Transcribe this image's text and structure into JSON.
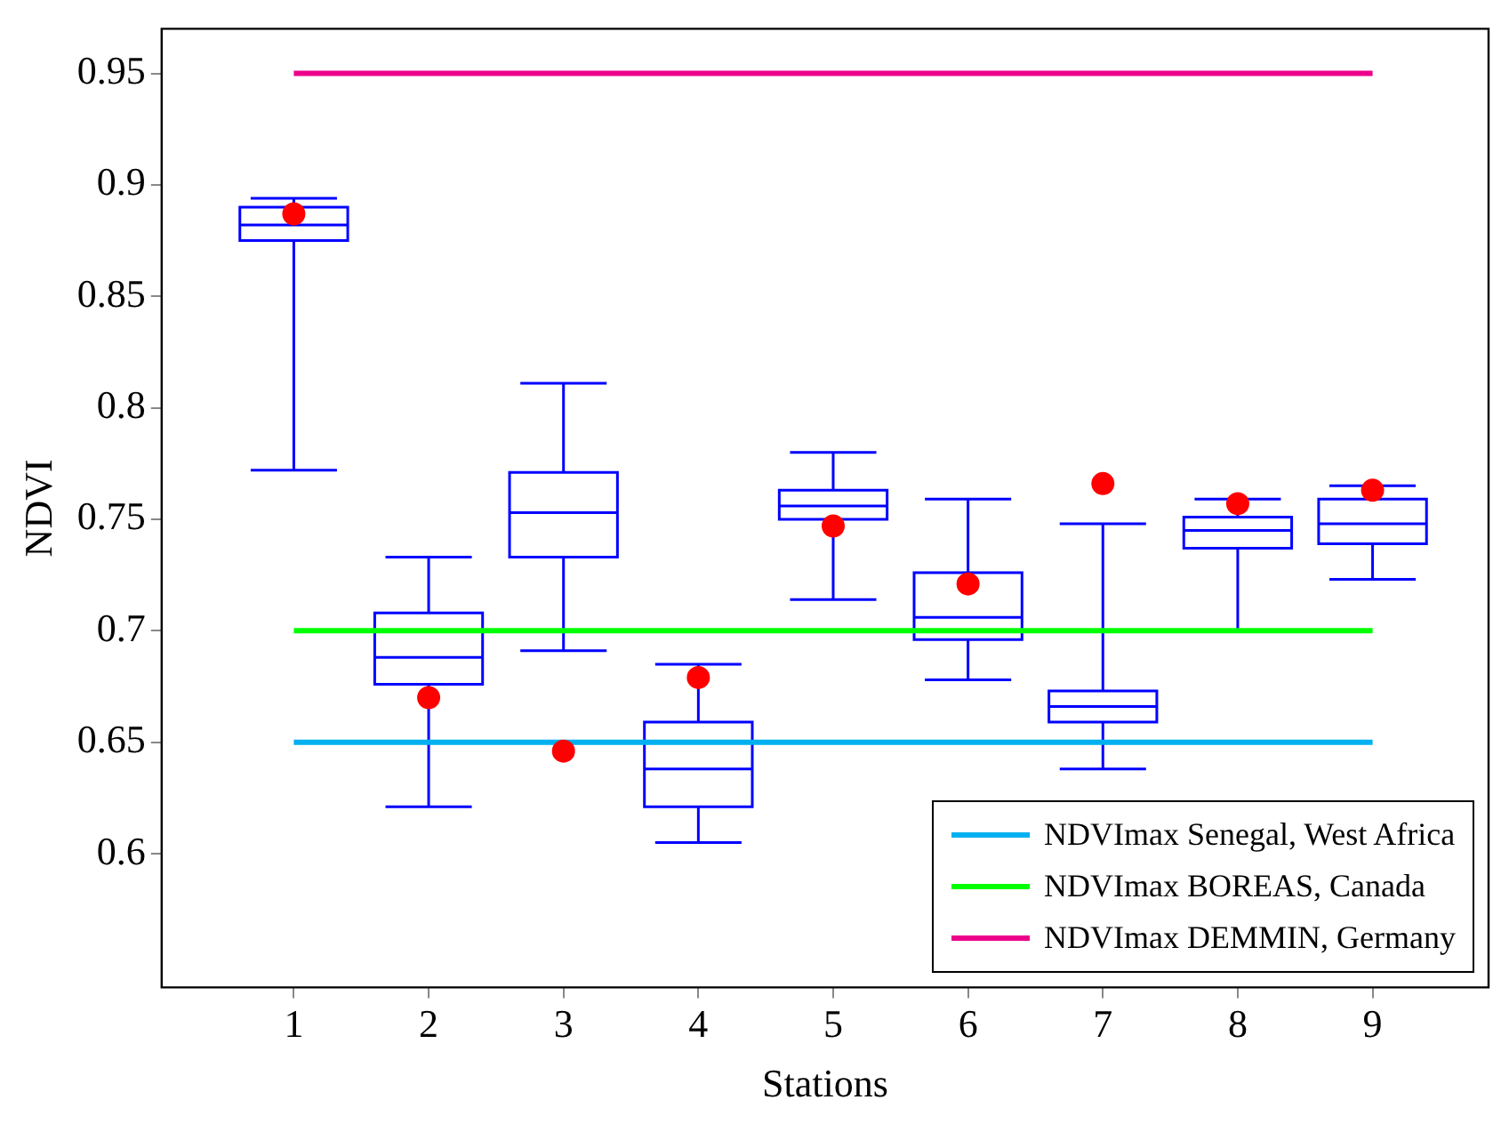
{
  "chart_data": {
    "type": "box",
    "xlabel": "Stations",
    "ylabel": "NDVI",
    "color": "#0000ff",
    "x": [
      1,
      2,
      3,
      4,
      5,
      6,
      7,
      8,
      9
    ],
    "xlim": [
      0.02,
      9.86
    ],
    "xticks": [
      1,
      2,
      3,
      4,
      5,
      6,
      7,
      8,
      9
    ],
    "ylim": [
      0.54,
      0.97
    ],
    "yticks": [
      0.6,
      0.65,
      0.7,
      0.75,
      0.8,
      0.85,
      0.9,
      0.95
    ],
    "boxes": [
      {
        "low": 0.772,
        "q1": 0.875,
        "median": 0.882,
        "q3": 0.89,
        "high": 0.894
      },
      {
        "low": 0.621,
        "q1": 0.676,
        "median": 0.688,
        "q3": 0.708,
        "high": 0.733
      },
      {
        "low": 0.691,
        "q1": 0.733,
        "median": 0.753,
        "q3": 0.771,
        "high": 0.811
      },
      {
        "low": 0.605,
        "q1": 0.621,
        "median": 0.638,
        "q3": 0.659,
        "high": 0.685
      },
      {
        "low": 0.714,
        "q1": 0.75,
        "median": 0.756,
        "q3": 0.763,
        "high": 0.78
      },
      {
        "low": 0.678,
        "q1": 0.696,
        "median": 0.706,
        "q3": 0.726,
        "high": 0.759
      },
      {
        "low": 0.638,
        "q1": 0.659,
        "median": 0.666,
        "q3": 0.673,
        "high": 0.748
      },
      {
        "low": 0.7,
        "q1": 0.737,
        "median": 0.745,
        "q3": 0.751,
        "high": 0.759
      },
      {
        "low": 0.723,
        "q1": 0.739,
        "median": 0.748,
        "q3": 0.759,
        "high": 0.765
      }
    ],
    "series": [
      {
        "type": "scatter",
        "color": "#ff0000",
        "marker": "circle",
        "x": [
          1,
          2,
          3,
          4,
          5,
          6,
          7,
          8,
          9
        ],
        "values": [
          0.887,
          0.67,
          0.646,
          0.679,
          0.747,
          0.721,
          0.766,
          0.757,
          0.763
        ]
      },
      {
        "type": "line",
        "name": "NDVImax Senegal, West Africa",
        "color": "#00b0f0",
        "x": [
          1,
          9
        ],
        "values": [
          0.65,
          0.65
        ]
      },
      {
        "type": "line",
        "name": "NDVImax BOREAS, Canada",
        "color": "#00ff00",
        "x": [
          1,
          9
        ],
        "values": [
          0.7,
          0.7
        ]
      },
      {
        "type": "line",
        "name": "NDVImax DEMMIN, Germany",
        "color": "#ec008c",
        "x": [
          1,
          9
        ],
        "values": [
          0.95,
          0.95
        ]
      }
    ],
    "legend": "bottom right",
    "grid": false
  }
}
